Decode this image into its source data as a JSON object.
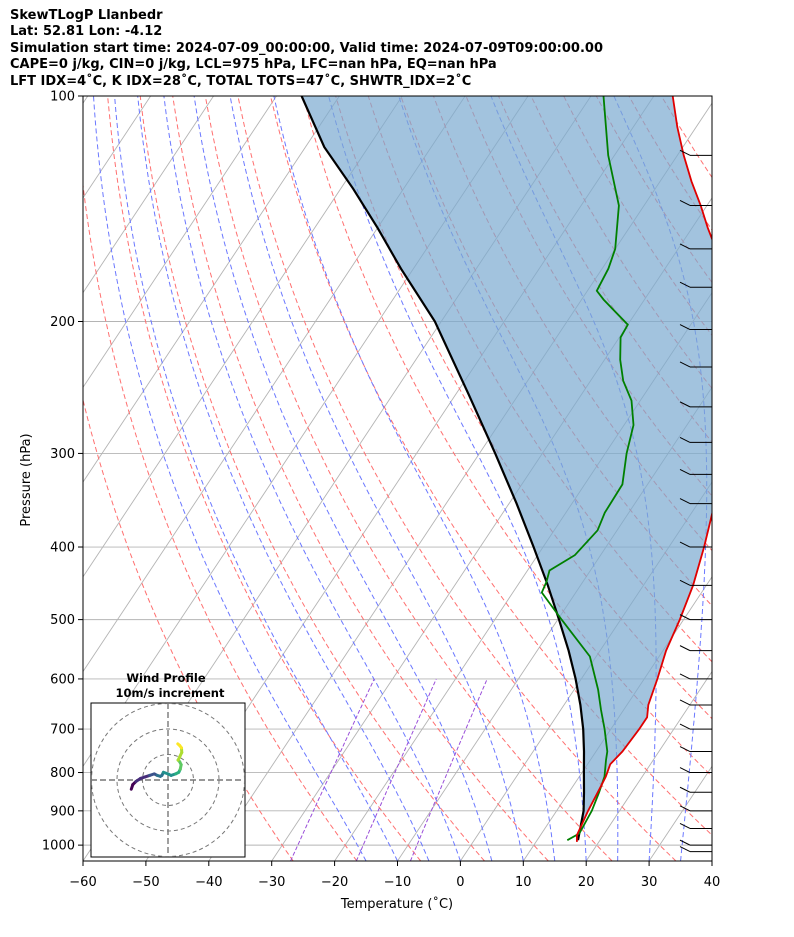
{
  "header": {
    "line1": "SkewTLogP Llanbedr",
    "line2": "Lat: 52.81   Lon: -4.12",
    "line3": "Simulation start time: 2024-07-09_00:00:00, Valid time: 2024-07-09T09:00:00.00",
    "line4": "CAPE=0 j/kg, CIN=0 j/kg, LCL=975 hPa, LFC=nan hPa, EQ=nan hPa",
    "line5": "LFT IDX=4˚C, K IDX=28˚C, TOTAL TOTS=47˚C, SHWTR_IDX=2˚C"
  },
  "chart_data": {
    "type": "line",
    "subtype": "skew-T log-P diagram",
    "xlabel": "Temperature (˚C)",
    "ylabel": "Pressure (hPa)",
    "xlim": [
      -60,
      40
    ],
    "ylim": [
      1050,
      100
    ],
    "x_ticks": [
      "−60",
      "−50",
      "−40",
      "−30",
      "−20",
      "−10",
      "0",
      "10",
      "20",
      "30",
      "40"
    ],
    "x_tick_values": [
      -60,
      -50,
      -40,
      -30,
      -20,
      -10,
      0,
      10,
      20,
      30,
      40
    ],
    "y_ticks": [
      "100",
      "200",
      "300",
      "400",
      "500",
      "600",
      "700",
      "800",
      "900",
      "1000"
    ],
    "y_tick_values": [
      100,
      200,
      300,
      400,
      500,
      600,
      700,
      800,
      900,
      1000
    ],
    "y_scale": "log",
    "temperature_series": {
      "color": "#e00000",
      "points": [
        [
          16.5,
          990
        ],
        [
          15.8,
          970
        ],
        [
          15.0,
          900
        ],
        [
          14.5,
          840
        ],
        [
          14.2,
          810
        ],
        [
          13.6,
          780
        ],
        [
          14.2,
          750
        ],
        [
          14.5,
          700
        ],
        [
          14.5,
          675
        ],
        [
          13.4,
          650
        ],
        [
          12.1,
          600
        ],
        [
          10.5,
          550
        ],
        [
          9.4,
          500
        ],
        [
          7.9,
          450
        ],
        [
          5.6,
          400
        ],
        [
          3.3,
          360
        ],
        [
          2.2,
          330
        ],
        [
          1.2,
          310
        ],
        [
          -2.4,
          280
        ],
        [
          -5.2,
          260
        ],
        [
          -7.2,
          250
        ],
        [
          -8.3,
          240
        ],
        [
          -10.5,
          220
        ],
        [
          -13.5,
          200
        ],
        [
          -17,
          185
        ],
        [
          -21,
          170
        ],
        [
          -24,
          160
        ],
        [
          -27.5,
          150
        ],
        [
          -31,
          140
        ],
        [
          -35,
          130
        ],
        [
          -39,
          120
        ],
        [
          -43,
          110
        ],
        [
          -47,
          100
        ]
      ]
    },
    "dewpoint_series": {
      "color": "#008000",
      "points": [
        [
          14.8,
          985
        ],
        [
          16.0,
          965
        ],
        [
          15.6,
          900
        ],
        [
          14.8,
          850
        ],
        [
          14.0,
          810
        ],
        [
          12.5,
          770
        ],
        [
          11.8,
          750
        ],
        [
          9.0,
          700
        ],
        [
          6.4,
          660
        ],
        [
          3.8,
          620
        ],
        [
          -1,
          560
        ],
        [
          -9.4,
          500
        ],
        [
          -15.4,
          460
        ],
        [
          -15.8,
          445
        ],
        [
          -16.5,
          430
        ],
        [
          -14.1,
          410
        ],
        [
          -13.1,
          380
        ],
        [
          -13.8,
          360
        ],
        [
          -14.0,
          330
        ],
        [
          -16.6,
          300
        ],
        [
          -18.5,
          275
        ],
        [
          -21.4,
          255
        ],
        [
          -24.8,
          240
        ],
        [
          -27.5,
          225
        ],
        [
          -29.8,
          210
        ],
        [
          -30.0,
          202
        ],
        [
          -36.5,
          187
        ],
        [
          -38.5,
          182
        ],
        [
          -39,
          170
        ],
        [
          -40,
          160
        ],
        [
          -44,
          140
        ],
        [
          -51,
          120
        ],
        [
          -58,
          100
        ]
      ]
    },
    "parcel_series": {
      "color": "#000000",
      "points": [
        [
          16.5,
          985
        ],
        [
          14.3,
          900
        ],
        [
          12.4,
          850
        ],
        [
          10.3,
          800
        ],
        [
          8.1,
          750
        ],
        [
          5.6,
          700
        ],
        [
          2.6,
          650
        ],
        [
          -0.9,
          600
        ],
        [
          -5.0,
          550
        ],
        [
          -9.8,
          500
        ],
        [
          -15.2,
          450
        ],
        [
          -21.5,
          400
        ],
        [
          -28.8,
          350
        ],
        [
          -37.5,
          300
        ],
        [
          -48,
          250
        ],
        [
          -61,
          200
        ],
        [
          -72,
          170
        ],
        [
          -80,
          150
        ],
        [
          -88,
          133
        ],
        [
          -97,
          117
        ],
        [
          -106,
          100
        ]
      ]
    },
    "shaded_region": "area between parcel profile and temperature profile",
    "shaded_color": "#7aa9d0",
    "isotherm_color": "#b4b4b4",
    "dry_adiabat_color": "#ff7070",
    "moist_adiabat_color": "#6b78ff",
    "mixing_ratio_color": "#9a4fd9",
    "wind_barb_levels_hPa": [
      1020,
      1000,
      950,
      900,
      850,
      800,
      750,
      700,
      650,
      600,
      550,
      500,
      450,
      400,
      350,
      320,
      290,
      260,
      230,
      205,
      180,
      160,
      140,
      120
    ],
    "hodograph": {
      "title_line1": "Wind Profile",
      "title_line2": "10m/s increment",
      "ring_count": 3,
      "colormap": "viridis",
      "points_uv": [
        [
          -12,
          -3
        ],
        [
          -11.5,
          -1.5
        ],
        [
          -10.5,
          -0.5
        ],
        [
          -9,
          0.5
        ],
        [
          -7.5,
          1
        ],
        [
          -6,
          1.5
        ],
        [
          -4.5,
          2
        ],
        [
          -3.5,
          1.5
        ],
        [
          -2.5,
          1.2
        ],
        [
          -2,
          1.5
        ],
        [
          -1.5,
          2.5
        ],
        [
          0,
          2
        ],
        [
          1,
          1.5
        ],
        [
          2.5,
          2
        ],
        [
          3.5,
          2.5
        ],
        [
          4,
          3.5
        ],
        [
          4.3,
          5
        ],
        [
          3.8,
          6
        ],
        [
          3.3,
          6.5
        ],
        [
          3.8,
          7.5
        ],
        [
          4.5,
          9
        ],
        [
          4.4,
          10.5
        ],
        [
          3.8,
          11.3
        ],
        [
          3.2,
          11.8
        ]
      ]
    }
  }
}
